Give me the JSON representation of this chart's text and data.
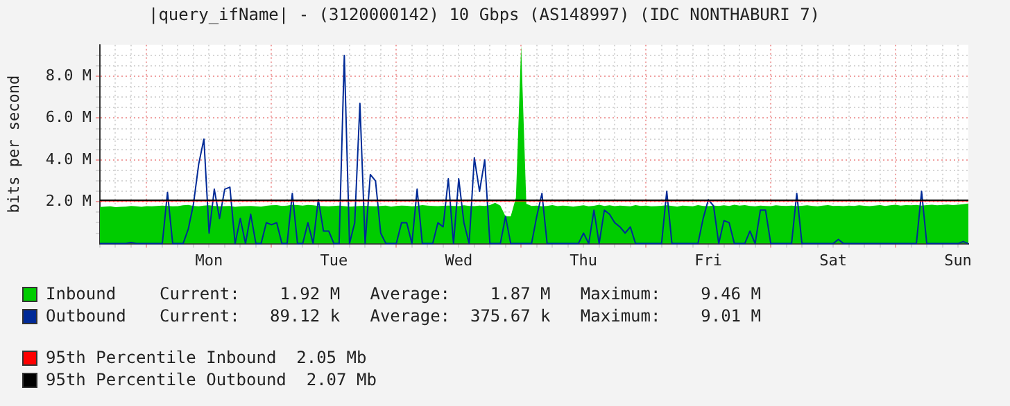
{
  "chart_data": {
    "type": "line",
    "title": "|query_ifName| - (3120000142) 10 Gbps (AS148997) (IDC NONTHABURI 7)",
    "ylabel": "bits per second",
    "categories": [
      null,
      null,
      null,
      null,
      null,
      null,
      null,
      null,
      null,
      null,
      null,
      null,
      null,
      null,
      null,
      null,
      null,
      null,
      null,
      null,
      null,
      "Mon",
      null,
      null,
      null,
      null,
      null,
      null,
      null,
      null,
      null,
      null,
      null,
      null,
      null,
      null,
      null,
      null,
      null,
      null,
      null,
      null,
      null,
      null,
      null,
      "Tue",
      null,
      null,
      null,
      null,
      null,
      null,
      null,
      null,
      null,
      null,
      null,
      null,
      null,
      null,
      null,
      null,
      null,
      null,
      null,
      null,
      null,
      null,
      null,
      "Wed",
      null,
      null,
      null,
      null,
      null,
      null,
      null,
      null,
      null,
      null,
      null,
      null,
      null,
      null,
      null,
      null,
      null,
      null,
      null,
      null,
      null,
      null,
      null,
      "Thu",
      null,
      null,
      null,
      null,
      null,
      null,
      null,
      null,
      null,
      null,
      null,
      null,
      null,
      null,
      null,
      null,
      null,
      null,
      null,
      null,
      null,
      null,
      null,
      "Fri",
      null,
      null,
      null,
      null,
      null,
      null,
      null,
      null,
      null,
      null,
      null,
      null,
      null,
      null,
      null,
      null,
      null,
      null,
      null,
      null,
      null,
      null,
      null,
      "Sat",
      null,
      null,
      null,
      null,
      null,
      null,
      null,
      null,
      null,
      null,
      null,
      null,
      null,
      null,
      null,
      null,
      null,
      null,
      null,
      null,
      null,
      null,
      null,
      "Sun",
      null,
      null
    ],
    "series": [
      {
        "name": "Inbound",
        "type": "area",
        "color": "#00cc00",
        "values": [
          1.75,
          1.77,
          1.78,
          1.74,
          1.76,
          1.77,
          1.8,
          1.78,
          1.76,
          1.79,
          1.78,
          1.8,
          1.82,
          1.8,
          1.78,
          1.79,
          1.83,
          1.85,
          1.8,
          1.78,
          1.82,
          1.83,
          1.8,
          1.78,
          1.79,
          1.8,
          1.76,
          1.78,
          1.79,
          1.8,
          1.78,
          1.77,
          1.81,
          1.83,
          1.84,
          1.8,
          1.82,
          1.86,
          1.84,
          1.82,
          1.85,
          1.83,
          1.8,
          1.79,
          1.78,
          1.8,
          1.82,
          1.79,
          1.77,
          1.78,
          1.8,
          1.81,
          1.79,
          1.78,
          1.8,
          1.82,
          1.77,
          1.8,
          1.82,
          1.81,
          1.78,
          1.8,
          1.84,
          1.82,
          1.8,
          1.79,
          1.81,
          1.82,
          1.8,
          1.79,
          1.83,
          1.8,
          1.79,
          1.82,
          1.8,
          1.84,
          1.95,
          1.82,
          1.3,
          1.3,
          2.2,
          9.46,
          1.9,
          1.8,
          1.82,
          1.78,
          1.8,
          1.84,
          1.79,
          1.82,
          1.8,
          1.77,
          1.8,
          1.83,
          1.78,
          1.81,
          1.86,
          1.8,
          1.83,
          1.79,
          1.82,
          1.8,
          1.78,
          1.84,
          1.8,
          1.82,
          1.78,
          1.79,
          1.81,
          1.83,
          1.8,
          1.77,
          1.82,
          1.8,
          1.78,
          1.84,
          1.8,
          1.79,
          1.82,
          1.8,
          1.83,
          1.8,
          1.86,
          1.82,
          1.84,
          1.8,
          1.78,
          1.82,
          1.8,
          1.79,
          1.83,
          1.81,
          1.8,
          1.82,
          1.79,
          1.81,
          1.83,
          1.8,
          1.78,
          1.82,
          1.84,
          1.8,
          1.81,
          1.79,
          1.82,
          1.8,
          1.83,
          1.81,
          1.79,
          1.82,
          1.84,
          1.8,
          1.83,
          1.86,
          1.82,
          1.84,
          1.83,
          1.85,
          1.82,
          1.84,
          1.86,
          1.83,
          1.85,
          1.87,
          1.84,
          1.86,
          1.88,
          1.92
        ]
      },
      {
        "name": "Outbound",
        "color": "#002a97",
        "values": [
          0,
          0,
          0,
          0,
          0,
          0,
          0.05,
          0,
          0,
          0,
          0,
          0,
          0,
          2.45,
          0,
          0,
          0,
          0.7,
          1.9,
          3.8,
          5.0,
          0.5,
          2.6,
          1.2,
          2.6,
          2.7,
          0,
          1.2,
          0,
          1.4,
          0,
          0,
          1.0,
          0.9,
          1.0,
          0,
          0,
          2.4,
          0,
          0,
          1.0,
          0,
          2.1,
          0.6,
          0.6,
          0,
          0,
          9.0,
          0,
          1.0,
          6.7,
          0,
          3.3,
          3.0,
          0.5,
          0,
          0,
          0,
          1.0,
          1.0,
          0,
          2.6,
          0,
          0,
          0,
          1.0,
          0.8,
          3.1,
          0,
          3.1,
          1.0,
          0,
          4.1,
          2.5,
          4.0,
          0,
          0,
          0,
          1.3,
          0,
          0,
          0,
          0,
          0,
          1.3,
          2.4,
          0,
          0,
          0,
          0,
          0,
          0,
          0,
          0.5,
          0,
          1.6,
          0,
          1.6,
          1.4,
          1.0,
          0.8,
          0.5,
          0.8,
          0,
          0,
          0,
          0,
          0,
          0,
          2.5,
          0,
          0,
          0,
          0,
          0,
          0,
          1.2,
          2.1,
          1.8,
          0,
          1.1,
          1.0,
          0,
          0,
          0,
          0.6,
          0,
          1.6,
          1.6,
          0,
          0,
          0,
          0,
          0,
          2.4,
          0,
          0,
          0,
          0,
          0,
          0,
          0,
          0.2,
          0,
          0,
          0,
          0,
          0,
          0,
          0,
          0,
          0,
          0,
          0,
          0,
          0,
          0,
          0,
          2.5,
          0,
          0,
          0,
          0,
          0,
          0,
          0,
          0.1,
          0
        ]
      }
    ],
    "annotations": [
      "Current:    1.92 M   Average:    1.87 M   Maximum:    9.46 M",
      "Current:   89.12 k   Average:  375.67 k   Maximum:    9.01 M"
    ],
    "ref_lines": [
      {
        "axis": "y",
        "value": 2.05,
        "label": "95th Percentile Inbound  2.05 Mb",
        "color": "#ff0000"
      },
      {
        "axis": "y",
        "value": 2.07,
        "label": "95th Percentile Outbound  2.07 Mb",
        "color": "#000000"
      }
    ],
    "ylim": [
      0,
      9.5
    ],
    "yticks": [
      {
        "value": 0.5,
        "label": null
      },
      {
        "value": 1,
        "label": null
      },
      {
        "value": 1.5,
        "label": null
      },
      {
        "value": 2,
        "label": "2.0 M"
      },
      {
        "value": 2.5,
        "label": null
      },
      {
        "value": 3,
        "label": null
      },
      {
        "value": 3.5,
        "label": null
      },
      {
        "value": 4,
        "label": "4.0 M"
      },
      {
        "value": 4.5,
        "label": null
      },
      {
        "value": 5,
        "label": null
      },
      {
        "value": 5.5,
        "label": null
      },
      {
        "value": 6,
        "label": "6.0 M"
      },
      {
        "value": 6.5,
        "label": null
      },
      {
        "value": 7,
        "label": null
      },
      {
        "value": 7.5,
        "label": null
      },
      {
        "value": 8,
        "label": "8.0 M"
      },
      {
        "value": 8.5,
        "label": null
      },
      {
        "value": 9,
        "label": null
      }
    ],
    "grid": true,
    "legend": "bottom",
    "marker": "none",
    "line_style": "solid"
  }
}
